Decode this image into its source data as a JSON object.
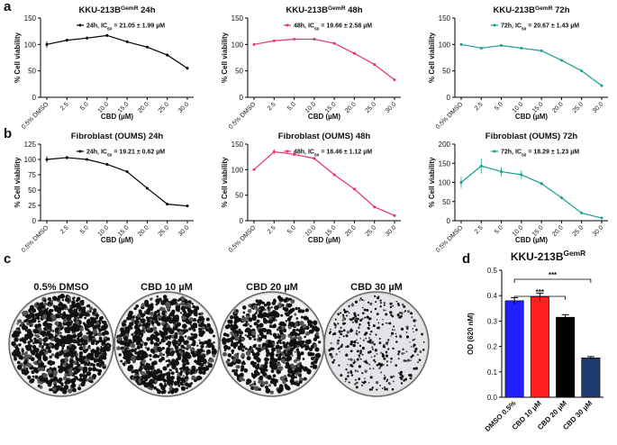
{
  "panel_labels": [
    "a",
    "b",
    "c",
    "d"
  ],
  "plates": [
    "0.5% DMSO",
    "CBD 10 µM",
    "CBD 20 µM",
    "CBD 30 µM"
  ],
  "chart_data": [
    {
      "type": "line",
      "title": [
        "KKU-213B",
        "GemR",
        " 24h"
      ],
      "title_superscript": 1,
      "legend_subscript": 1,
      "legend": "upper right",
      "xlabel": "CBD (µM)",
      "ylabel": "% Cell viability",
      "categories": [
        "0.5% DMSO",
        "2.5",
        "5.0",
        "10.0",
        "15.0",
        "20.0",
        "25.0",
        "30.0"
      ],
      "series": [
        {
          "name": [
            "24h, IC",
            "50",
            " = 21.05 ± 1.99  µM"
          ],
          "color": "#000000",
          "values": [
            100,
            108,
            112,
            117,
            105,
            95,
            80,
            55
          ],
          "errors": [
            6,
            3,
            3,
            3,
            3,
            2,
            3,
            3
          ]
        }
      ],
      "ylim": [
        0,
        150
      ],
      "yticks": [
        0,
        50,
        100,
        150
      ]
    },
    {
      "type": "line",
      "title": [
        "KKU-213B",
        "GemR",
        " 48h"
      ],
      "title_superscript": 1,
      "legend_subscript": 1,
      "legend": "upper right",
      "xlabel": "CBD (µM)",
      "ylabel": "% Cell viability",
      "categories": [
        "0.5% DMSO",
        "2.5",
        "5.0",
        "10.0",
        "15.0",
        "20.0",
        "25.0",
        "30.0"
      ],
      "series": [
        {
          "name": [
            "48h, IC",
            "50",
            " = 19.66 ± 2.58  µM"
          ],
          "color": "#e8336b",
          "values": [
            100,
            107,
            110,
            110,
            102,
            83,
            62,
            33
          ],
          "errors": [
            2,
            2,
            2,
            2,
            2,
            2,
            2,
            2
          ]
        }
      ],
      "ylim": [
        0,
        150
      ],
      "yticks": [
        0,
        50,
        100,
        150
      ]
    },
    {
      "type": "line",
      "title": [
        "KKU-213B",
        "GemR",
        " 72h"
      ],
      "title_superscript": 1,
      "legend_subscript": 1,
      "legend": "upper right",
      "xlabel": "CBD (µM)",
      "ylabel": "% Cell viability",
      "categories": [
        "0.5% DMSO",
        "2.5",
        "5.0",
        "10.0",
        "15.0",
        "20.0",
        "25.0",
        "30.0"
      ],
      "series": [
        {
          "name": [
            "72h, IC",
            "50",
            " = 20.67 ± 1.43  µM"
          ],
          "color": "#1a9e8f",
          "values": [
            100,
            93,
            98,
            93,
            88,
            70,
            50,
            22
          ],
          "errors": [
            2,
            2,
            2,
            2,
            2,
            2,
            2,
            2
          ]
        }
      ],
      "ylim": [
        0,
        150
      ],
      "yticks": [
        0,
        50,
        100,
        150
      ]
    },
    {
      "type": "line",
      "title": [
        "Fibroblast (OUMS) 24h"
      ],
      "legend_subscript": 1,
      "legend": "upper right",
      "xlabel": "CBD (µM)",
      "ylabel": "% Cell viability",
      "categories": [
        "0.5% DMSO",
        "2.5",
        "5.0",
        "10.0",
        "15.0",
        "20.0",
        "25.0",
        "30.0"
      ],
      "series": [
        {
          "name": [
            "24h, IC",
            "50",
            " = 19.21 ± 0.62  µM"
          ],
          "color": "#000000",
          "values": [
            100,
            103,
            100,
            92,
            80,
            53,
            27,
            24
          ],
          "errors": [
            5,
            3,
            2,
            2,
            2,
            2,
            2,
            2
          ]
        }
      ],
      "ylim": [
        0,
        125
      ],
      "yticks": [
        0,
        25,
        50,
        75,
        100,
        125
      ]
    },
    {
      "type": "line",
      "title": [
        "Fibroblast (OUMS) 48h"
      ],
      "legend_subscript": 1,
      "legend": "upper right",
      "xlabel": "CBD (µM)",
      "ylabel": "% Cell viability",
      "categories": [
        "0.5% DMSO",
        "2.5",
        "5.0",
        "10.0",
        "15.0",
        "20.0",
        "25.0",
        "30.0"
      ],
      "series": [
        {
          "name": [
            "48h, IC",
            "50",
            " = 18.46 ± 1.12  µM"
          ],
          "color": "#e8336b",
          "values": [
            100,
            135,
            130,
            122,
            90,
            62,
            27,
            10
          ],
          "errors": [
            2,
            5,
            3,
            3,
            3,
            2,
            2,
            2
          ]
        }
      ],
      "ylim": [
        0,
        150
      ],
      "yticks": [
        0,
        50,
        100,
        150
      ]
    },
    {
      "type": "line",
      "title": [
        "Fibroblast (OUMS) 72h"
      ],
      "legend_subscript": 1,
      "legend": "upper right",
      "xlabel": "CBD (µM)",
      "ylabel": "% Cell viability",
      "categories": [
        "0.5% DMSO",
        "2.5",
        "5.0",
        "10.0",
        "15.0",
        "20.0",
        "25.0",
        "30.0"
      ],
      "series": [
        {
          "name": [
            "72h, IC",
            "50",
            " = 18.29 ± 1.23  µM"
          ],
          "color": "#1a9e8f",
          "values": [
            100,
            143,
            128,
            120,
            97,
            60,
            20,
            7
          ],
          "errors": [
            15,
            20,
            12,
            12,
            5,
            4,
            3,
            2
          ]
        }
      ],
      "ylim": [
        0,
        200
      ],
      "yticks": [
        0,
        50,
        100,
        150,
        200
      ]
    },
    {
      "type": "bar",
      "title": [
        "KKU-213B",
        "GemR"
      ],
      "title_superscript": 1,
      "ylabel": "OD (620 nM)",
      "categories": [
        "DMSO 0.5%",
        "CBD 10 µM",
        "CBD 20 µM",
        "CBD 30 µM"
      ],
      "values": [
        0.38,
        0.395,
        0.315,
        0.155
      ],
      "errors": [
        0.012,
        0.015,
        0.01,
        0.005
      ],
      "colors": [
        "#1f1fff",
        "#ff1f1f",
        "#000000",
        "#1f3a6e"
      ],
      "ylim": [
        0,
        0.5
      ],
      "yticks": [
        {
          "value": 0,
          "label": "0.0"
        },
        0.1,
        0.2,
        0.3,
        0.4,
        0.5
      ],
      "annotations": [
        "***",
        "***"
      ]
    }
  ]
}
